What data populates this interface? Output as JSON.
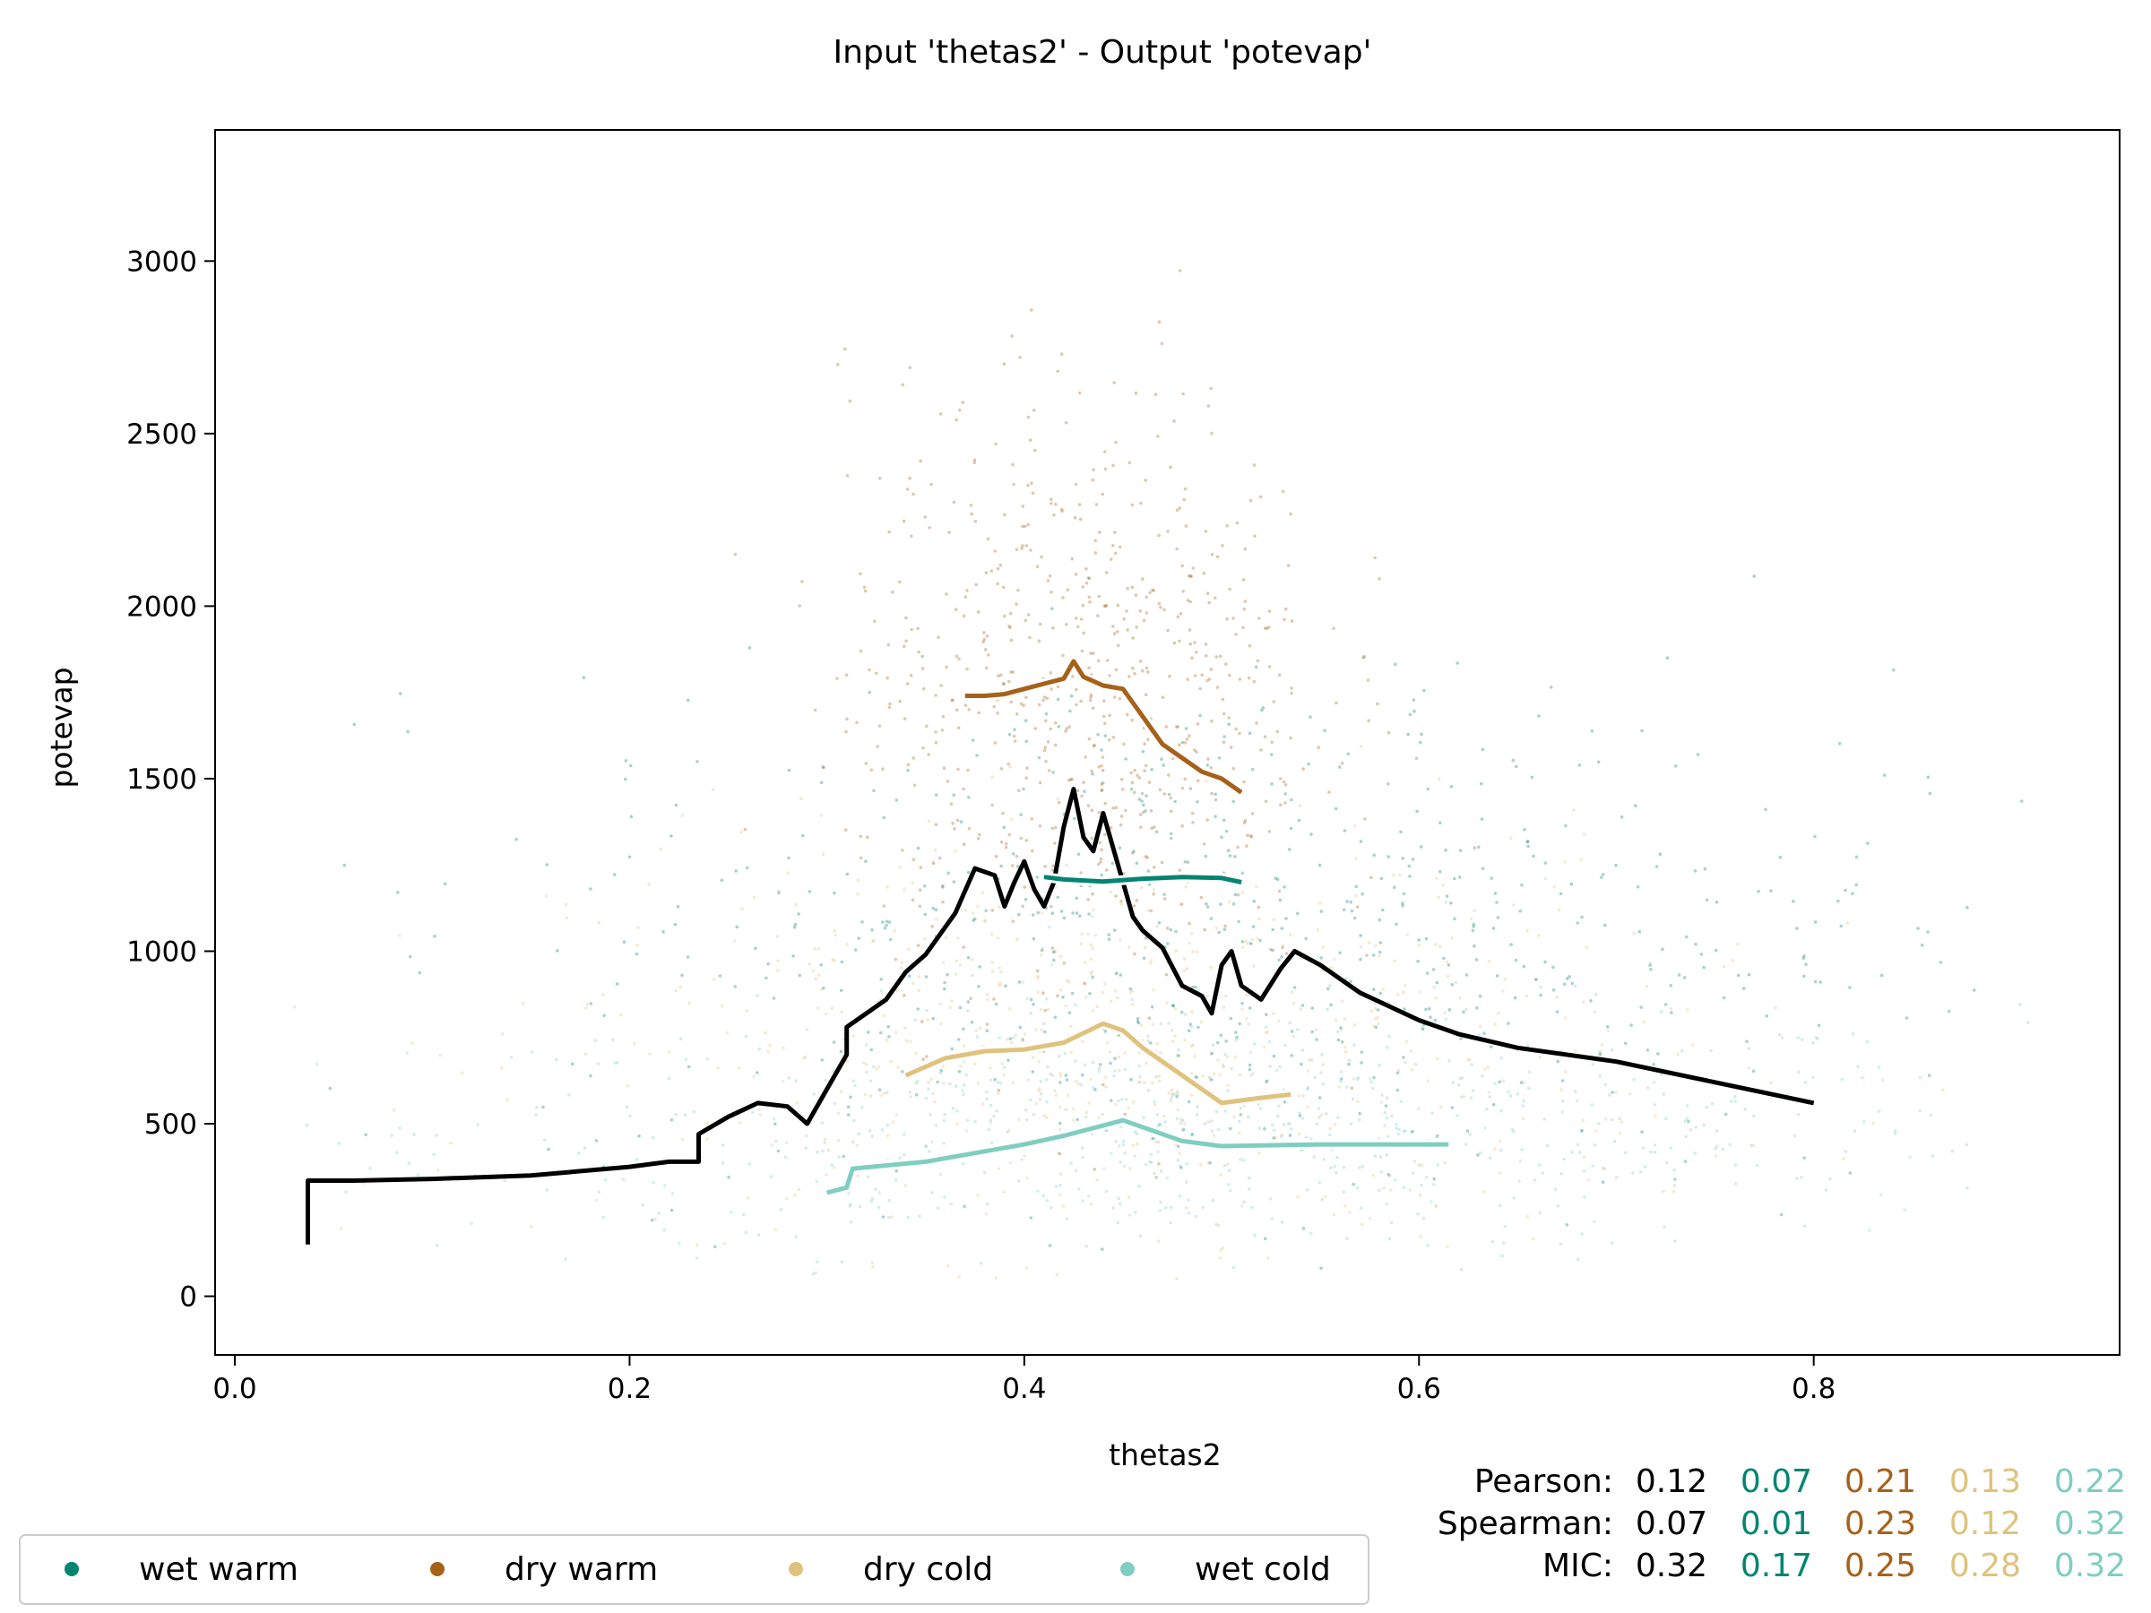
{
  "chart_data": {
    "type": "scatter",
    "title": "Input 'thetas2' - Output 'potevap'",
    "xlabel": "thetas2",
    "ylabel": "potevap",
    "xlim": [
      -0.01,
      0.955
    ],
    "ylim": [
      -170,
      3380
    ],
    "xticks": [
      {
        "value": 0.0,
        "label": "0.0"
      },
      {
        "value": 0.2,
        "label": "0.2"
      },
      {
        "value": 0.4,
        "label": "0.4"
      },
      {
        "value": 0.6,
        "label": "0.6"
      },
      {
        "value": 0.8,
        "label": "0.8"
      }
    ],
    "yticks": [
      {
        "value": 0,
        "label": "0"
      },
      {
        "value": 500,
        "label": "500"
      },
      {
        "value": 1000,
        "label": "1000"
      },
      {
        "value": 1500,
        "label": "1500"
      },
      {
        "value": 2000,
        "label": "2000"
      },
      {
        "value": 2500,
        "label": "2500"
      },
      {
        "value": 3000,
        "label": "3000"
      }
    ],
    "grid": false,
    "legend_placement": "bottom-left",
    "colors": {
      "all": "#000000",
      "wet_warm": "#018571",
      "dry_warm": "#a6611a",
      "dry_cold": "#dfc27d",
      "wet_cold": "#80cdc1"
    },
    "legend": [
      {
        "label": "wet warm",
        "color": "#018571"
      },
      {
        "label": "dry warm",
        "color": "#a6611a"
      },
      {
        "label": "dry cold",
        "color": "#dfc27d"
      },
      {
        "label": "wet cold",
        "color": "#80cdc1"
      }
    ],
    "scatter_clouds": [
      {
        "group": "wet cold",
        "color": "#80cdc1",
        "x_center": 0.5,
        "x_spread": 0.2,
        "y_center": 480,
        "y_spread": 180
      },
      {
        "group": "dry cold",
        "color": "#dfc27d",
        "x_center": 0.45,
        "x_spread": 0.14,
        "y_center": 720,
        "y_spread": 300
      },
      {
        "group": "wet warm",
        "color": "#018571",
        "x_center": 0.5,
        "x_spread": 0.17,
        "y_center": 1050,
        "y_spread": 380
      },
      {
        "group": "dry warm",
        "color": "#a6611a",
        "x_center": 0.43,
        "x_spread": 0.06,
        "y_center": 1750,
        "y_spread": 450
      }
    ],
    "series": [
      {
        "name": "all",
        "color": "#000000",
        "x": [
          0.037,
          0.037,
          0.06,
          0.1,
          0.15,
          0.2,
          0.22,
          0.235,
          0.235,
          0.25,
          0.265,
          0.28,
          0.29,
          0.3,
          0.31,
          0.31,
          0.33,
          0.34,
          0.35,
          0.365,
          0.375,
          0.385,
          0.39,
          0.395,
          0.4,
          0.405,
          0.41,
          0.415,
          0.42,
          0.425,
          0.43,
          0.435,
          0.44,
          0.445,
          0.45,
          0.455,
          0.46,
          0.47,
          0.48,
          0.49,
          0.495,
          0.5,
          0.505,
          0.51,
          0.52,
          0.53,
          0.537,
          0.55,
          0.57,
          0.6,
          0.62,
          0.65,
          0.7,
          0.75,
          0.8
        ],
        "y": [
          150,
          335,
          335,
          340,
          350,
          375,
          390,
          390,
          470,
          520,
          560,
          550,
          500,
          600,
          700,
          780,
          860,
          940,
          990,
          1110,
          1240,
          1220,
          1130,
          1200,
          1260,
          1180,
          1130,
          1200,
          1360,
          1470,
          1330,
          1290,
          1400,
          1300,
          1200,
          1100,
          1060,
          1010,
          900,
          870,
          820,
          960,
          1000,
          900,
          860,
          950,
          1000,
          960,
          880,
          800,
          760,
          720,
          680,
          620,
          560
        ]
      },
      {
        "name": "wet warm",
        "color": "#018571",
        "x": [
          0.41,
          0.42,
          0.44,
          0.46,
          0.48,
          0.5,
          0.51
        ],
        "y": [
          1215,
          1208,
          1202,
          1210,
          1215,
          1212,
          1200
        ]
      },
      {
        "name": "dry warm",
        "color": "#a6611a",
        "x": [
          0.37,
          0.38,
          0.39,
          0.4,
          0.41,
          0.42,
          0.425,
          0.43,
          0.44,
          0.45,
          0.46,
          0.47,
          0.48,
          0.49,
          0.5,
          0.51
        ],
        "y": [
          1740,
          1740,
          1745,
          1760,
          1775,
          1790,
          1840,
          1795,
          1770,
          1760,
          1680,
          1600,
          1560,
          1520,
          1500,
          1460
        ]
      },
      {
        "name": "dry cold",
        "color": "#dfc27d",
        "x": [
          0.34,
          0.36,
          0.38,
          0.4,
          0.42,
          0.44,
          0.45,
          0.46,
          0.48,
          0.5,
          0.52,
          0.535
        ],
        "y": [
          640,
          690,
          710,
          715,
          735,
          790,
          770,
          720,
          640,
          560,
          575,
          585
        ]
      },
      {
        "name": "wet cold",
        "color": "#80cdc1",
        "x": [
          0.3,
          0.31,
          0.313,
          0.35,
          0.4,
          0.42,
          0.45,
          0.48,
          0.5,
          0.55,
          0.6,
          0.615
        ],
        "y": [
          300,
          315,
          370,
          390,
          440,
          465,
          510,
          450,
          435,
          440,
          440,
          440
        ]
      }
    ]
  },
  "stats": [
    {
      "label": "Pearson:",
      "values": [
        "0.12",
        "0.07",
        "0.21",
        "0.13",
        "0.22"
      ]
    },
    {
      "label": "Spearman:",
      "values": [
        "0.07",
        "0.01",
        "0.23",
        "0.12",
        "0.32"
      ]
    },
    {
      "label": "MIC:",
      "values": [
        "0.32",
        "0.17",
        "0.25",
        "0.28",
        "0.32"
      ]
    }
  ]
}
